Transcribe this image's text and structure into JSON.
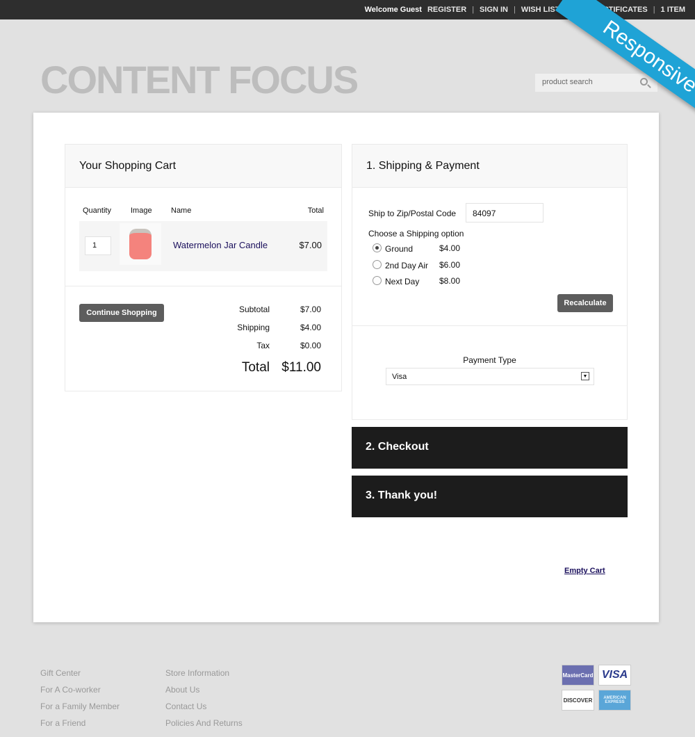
{
  "topbar": {
    "welcome": "Welcome Guest",
    "links": [
      "REGISTER",
      "SIGN IN",
      "WISH LIST",
      "GIFT CERTIFICATES",
      "1 ITEM"
    ]
  },
  "ribbon": "Responsive",
  "logo": "CONTENT FOCUS",
  "search": {
    "placeholder": "product search"
  },
  "cart": {
    "title": "Your Shopping Cart",
    "headers": {
      "quantity": "Quantity",
      "image": "Image",
      "name": "Name",
      "total": "Total"
    },
    "items": [
      {
        "quantity": "1",
        "name": "Watermelon Jar Candle",
        "total": "$7.00"
      }
    ],
    "continue": "Continue Shopping",
    "subtotal_label": "Subtotal",
    "subtotal": "$7.00",
    "shipping_label": "Shipping",
    "shipping": "$4.00",
    "tax_label": "Tax",
    "tax": "$0.00",
    "total_label": "Total",
    "total": "$11.00"
  },
  "shipping": {
    "title": "1. Shipping & Payment",
    "zip_label": "Ship to Zip/Postal Code",
    "zip": "84097",
    "option_label": "Choose a Shipping option",
    "options": [
      {
        "label": "Ground",
        "price": "$4.00",
        "selected": true
      },
      {
        "label": "2nd Day Air",
        "price": "$6.00",
        "selected": false
      },
      {
        "label": "Next Day",
        "price": "$8.00",
        "selected": false
      }
    ],
    "recalculate": "Recalculate",
    "payment_label": "Payment Type",
    "payment": "Visa"
  },
  "steps": {
    "checkout": "2. Checkout",
    "thanks": "3. Thank you!"
  },
  "empty_cart": "Empty Cart",
  "footer": {
    "col1": [
      "Gift Center",
      "For A Co-worker",
      "For a Family Member",
      "For a Friend"
    ],
    "col2": [
      "Store Information",
      "About Us",
      "Contact Us",
      "Policies And Returns"
    ],
    "cards": [
      "MasterCard",
      "VISA",
      "DISCOVER",
      "AMERICAN EXPRESS"
    ]
  },
  "colors": {
    "accent": "#1fa3d6",
    "dark": "#1c1c1c"
  }
}
